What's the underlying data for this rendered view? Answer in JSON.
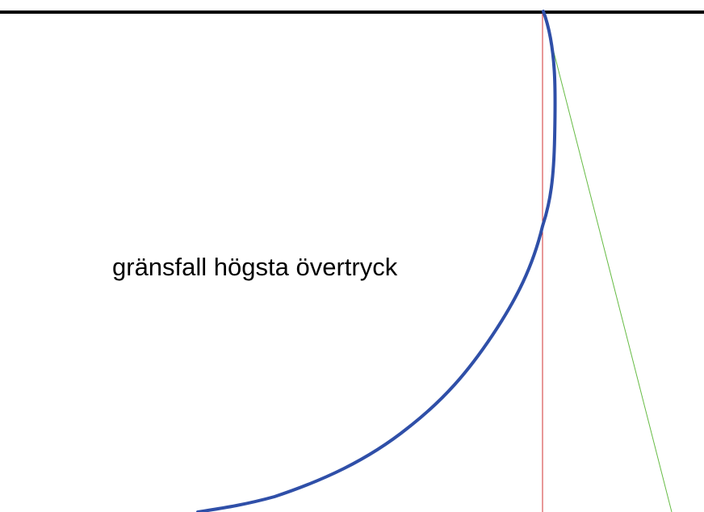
{
  "diagram": {
    "label": "gränsfall högsta övertryck"
  }
}
